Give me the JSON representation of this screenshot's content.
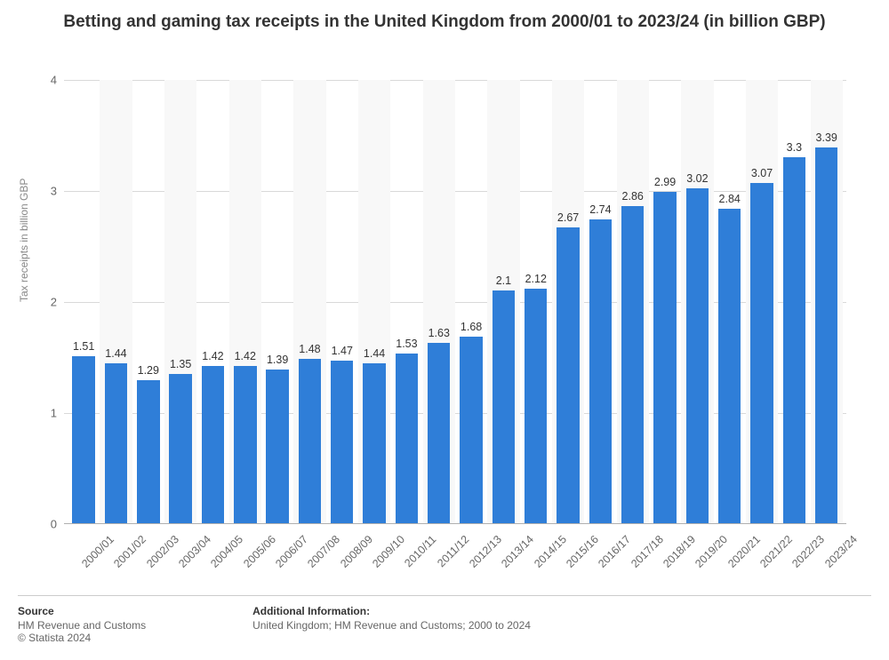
{
  "title": "Betting and gaming tax receipts in the United Kingdom from 2000/01 to 2023/24 (in billion GBP)",
  "chart": {
    "type": "bar",
    "ylabel": "Tax receipts in billion GBP",
    "ylim": [
      0,
      4
    ],
    "ytick_step": 1,
    "yticks": [
      0,
      1,
      2,
      3,
      4
    ],
    "categories": [
      "2000/01",
      "2001/02",
      "2002/03",
      "2003/04",
      "2004/05",
      "2005/06",
      "2006/07",
      "2007/08",
      "2008/09",
      "2009/10",
      "2010/11",
      "2011/12",
      "2012/13",
      "2013/14",
      "2014/15",
      "2015/16",
      "2016/17",
      "2017/18",
      "2018/19",
      "2019/20",
      "2020/21",
      "2021/22",
      "2022/23",
      "2023/24"
    ],
    "values": [
      1.51,
      1.44,
      1.29,
      1.35,
      1.42,
      1.42,
      1.39,
      1.48,
      1.47,
      1.44,
      1.53,
      1.63,
      1.68,
      2.1,
      2.12,
      2.67,
      2.74,
      2.86,
      2.99,
      3.02,
      2.84,
      3.07,
      3.3,
      3.39
    ],
    "value_labels": [
      "1.51",
      "1.44",
      "1.29",
      "1.35",
      "1.42",
      "1.42",
      "1.39",
      "1.48",
      "1.47",
      "1.44",
      "1.53",
      "1.63",
      "1.68",
      "2.1",
      "2.12",
      "2.67",
      "2.74",
      "2.86",
      "2.99",
      "3.02",
      "2.84",
      "3.07",
      "3.3",
      "3.39"
    ],
    "bar_color": "#2f7ed8",
    "alt_background": "#f8f8f8",
    "grid_color": "#d9d9d9",
    "background_color": "#ffffff",
    "title_fontsize": 19,
    "label_fontsize": 12,
    "bar_width": 0.7
  },
  "footer": {
    "source_header": "Source",
    "source_line1": "HM Revenue and Customs",
    "source_line2": "© Statista 2024",
    "info_header": "Additional Information:",
    "info_line1": "United Kingdom; HM Revenue and Customs; 2000 to 2024"
  }
}
